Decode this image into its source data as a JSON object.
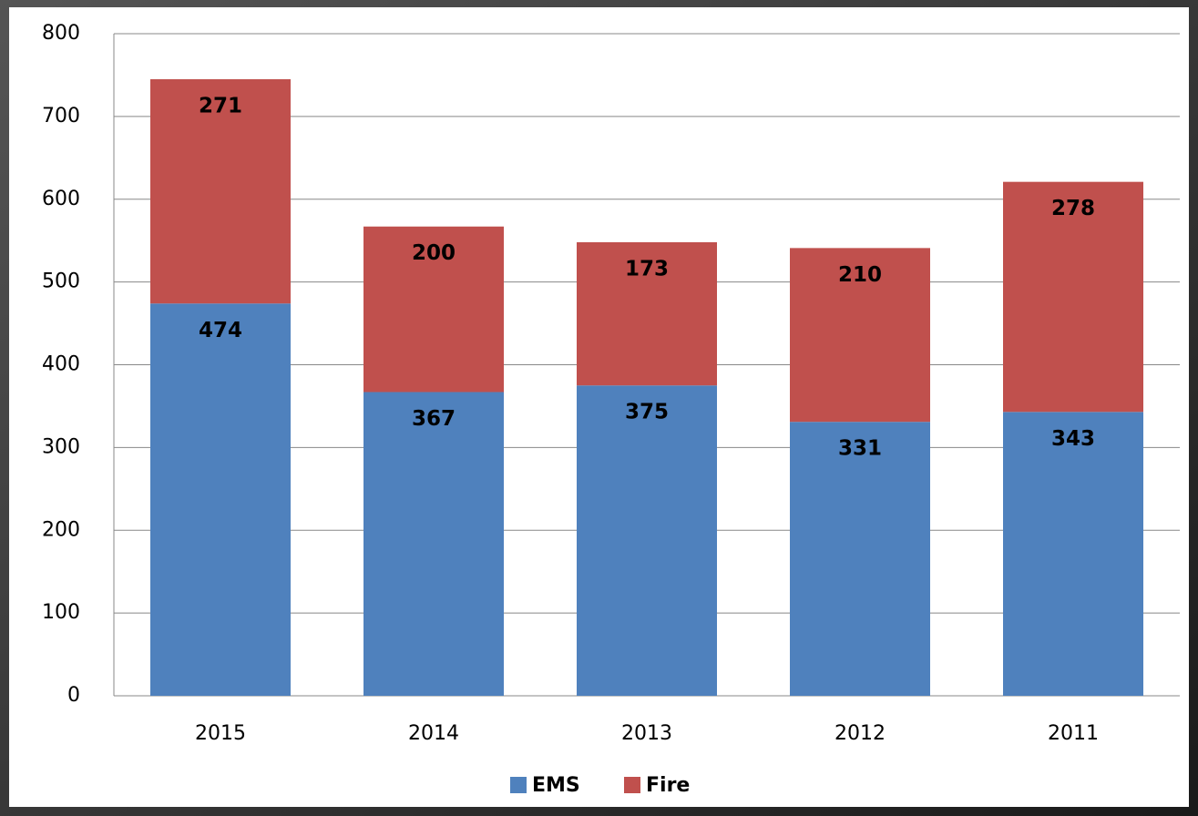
{
  "chart_data": {
    "type": "stacked_bar",
    "categories": [
      "2015",
      "2014",
      "2013",
      "2012",
      "2011"
    ],
    "series": [
      {
        "name": "EMS",
        "color": "#4f81bd",
        "values": [
          474,
          367,
          375,
          331,
          343
        ]
      },
      {
        "name": "Fire",
        "color": "#c0504d",
        "values": [
          271,
          200,
          173,
          210,
          278
        ]
      }
    ],
    "ylim": [
      0,
      800
    ],
    "yticks": [
      0,
      100,
      200,
      300,
      400,
      500,
      600,
      700,
      800
    ],
    "grid": true,
    "legend": "bottom"
  }
}
